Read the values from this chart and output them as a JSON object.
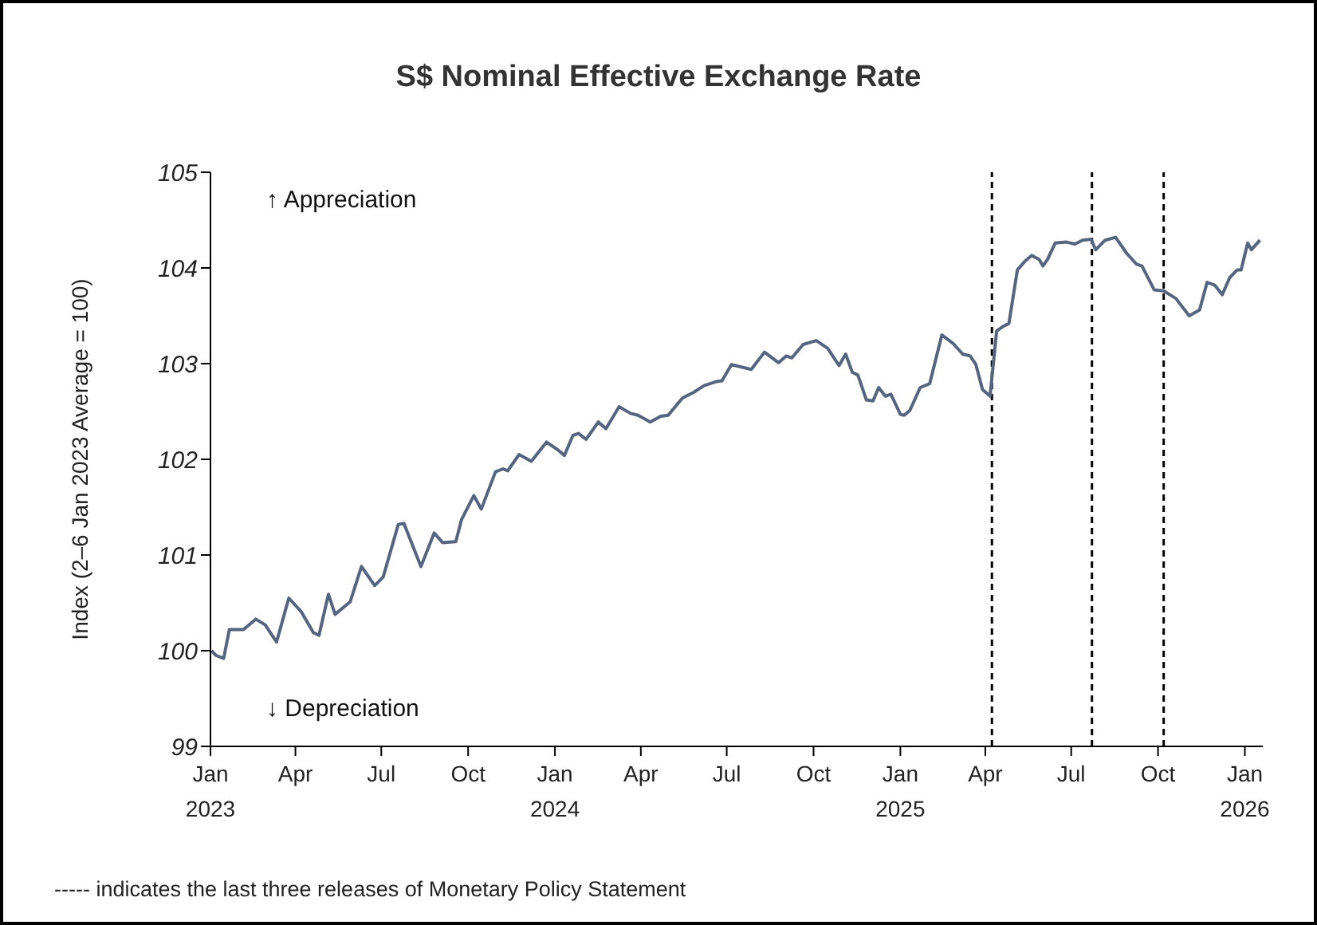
{
  "chart_data": {
    "type": "line",
    "title": "S$ Nominal Effective Exchange Rate",
    "ylabel": "Index (2–6 Jan 2023 Average = 100)",
    "annotations": [
      "↑ Appreciation",
      "↓ Depreciation",
      "----- indicates the last three releases of Monetary Policy Statement"
    ],
    "x": [
      "2023-01-02",
      "2023-01-07",
      "2023-01-15",
      "2023-01-21",
      "2023-02-05",
      "2023-02-18",
      "2023-02-28",
      "2023-03-12",
      "2023-03-25",
      "2023-04-07",
      "2023-04-20",
      "2023-04-26",
      "2023-05-06",
      "2023-05-13",
      "2023-05-29",
      "2023-06-10",
      "2023-06-24",
      "2023-07-03",
      "2023-07-19",
      "2023-07-25",
      "2023-08-12",
      "2023-08-26",
      "2023-09-04",
      "2023-09-18",
      "2023-09-24",
      "2023-10-07",
      "2023-10-15",
      "2023-10-30",
      "2023-11-07",
      "2023-11-12",
      "2023-11-24",
      "2023-12-07",
      "2023-12-23",
      "2024-01-04",
      "2024-01-11",
      "2024-01-20",
      "2024-01-26",
      "2024-02-03",
      "2024-02-16",
      "2024-02-24",
      "2024-03-09",
      "2024-03-21",
      "2024-03-29",
      "2024-04-11",
      "2024-04-22",
      "2024-04-30",
      "2024-05-15",
      "2024-05-27",
      "2024-06-07",
      "2024-06-19",
      "2024-06-26",
      "2024-07-06",
      "2024-07-27",
      "2024-08-10",
      "2024-08-25",
      "2024-09-02",
      "2024-09-08",
      "2024-09-20",
      "2024-10-04",
      "2024-10-16",
      "2024-10-28",
      "2024-11-04",
      "2024-11-11",
      "2024-11-17",
      "2024-11-26",
      "2024-12-03",
      "2024-12-09",
      "2024-12-16",
      "2024-12-22",
      "2025-01-01",
      "2025-01-05",
      "2025-01-11",
      "2025-01-22",
      "2025-02-01",
      "2025-02-14",
      "2025-02-26",
      "2025-03-08",
      "2025-03-16",
      "2025-03-22",
      "2025-03-29",
      "2025-04-06",
      "2025-04-13",
      "2025-04-20",
      "2025-04-26",
      "2025-05-05",
      "2025-05-13",
      "2025-05-20",
      "2025-05-28",
      "2025-06-01",
      "2025-06-06",
      "2025-06-14",
      "2025-06-26",
      "2025-07-05",
      "2025-07-13",
      "2025-07-22",
      "2025-07-27",
      "2025-08-06",
      "2025-08-17",
      "2025-08-29",
      "2025-09-08",
      "2025-09-14",
      "2025-09-27",
      "2025-10-07",
      "2025-10-20",
      "2025-11-03",
      "2025-11-14",
      "2025-11-22",
      "2025-11-30",
      "2025-12-08",
      "2025-12-16",
      "2025-12-24",
      "2025-12-28",
      "2026-01-04",
      "2026-01-08",
      "2026-01-17"
    ],
    "series": [
      {
        "color": "#56657f",
        "values": [
          100.0,
          99.95,
          99.92,
          100.22,
          100.22,
          100.33,
          100.27,
          100.09,
          100.55,
          100.41,
          100.19,
          100.16,
          100.59,
          100.38,
          100.51,
          100.88,
          100.68,
          100.77,
          101.32,
          101.33,
          100.88,
          101.23,
          101.13,
          101.14,
          101.37,
          101.62,
          101.48,
          101.87,
          101.9,
          101.88,
          102.05,
          101.98,
          102.18,
          102.1,
          102.04,
          102.25,
          102.27,
          102.21,
          102.39,
          102.32,
          102.55,
          102.48,
          102.46,
          102.39,
          102.45,
          102.46,
          102.64,
          102.7,
          102.77,
          102.81,
          102.82,
          102.99,
          102.94,
          103.12,
          103.01,
          103.08,
          103.06,
          103.2,
          103.24,
          103.16,
          102.98,
          103.1,
          102.91,
          102.88,
          102.62,
          102.61,
          102.75,
          102.66,
          102.68,
          102.47,
          102.46,
          102.51,
          102.75,
          102.79,
          103.3,
          103.21,
          103.1,
          103.08,
          102.99,
          102.73,
          102.66,
          103.34,
          103.39,
          103.42,
          103.98,
          104.07,
          104.13,
          104.09,
          104.02,
          104.09,
          104.26,
          104.27,
          104.25,
          104.29,
          104.3,
          104.19,
          104.29,
          104.32,
          104.15,
          104.04,
          104.02,
          103.77,
          103.76,
          103.68,
          103.5,
          103.56,
          103.85,
          103.82,
          103.72,
          103.9,
          103.98,
          103.98,
          104.26,
          104.19,
          104.29
        ]
      }
    ],
    "xlim": [
      "2023-01-01",
      "2026-01-20"
    ],
    "xticks": [
      {
        "value": "2023-01-01",
        "label": "Jan\n2023"
      },
      {
        "value": "2023-04-01",
        "label": "Apr"
      },
      {
        "value": "2023-07-01",
        "label": "Jul"
      },
      {
        "value": "2023-10-01",
        "label": "Oct"
      },
      {
        "value": "2024-01-01",
        "label": "Jan\n2024"
      },
      {
        "value": "2024-04-01",
        "label": "Apr"
      },
      {
        "value": "2024-07-01",
        "label": "Jul"
      },
      {
        "value": "2024-10-01",
        "label": "Oct"
      },
      {
        "value": "2025-01-01",
        "label": "Jan\n2025"
      },
      {
        "value": "2025-04-01",
        "label": "Apr"
      },
      {
        "value": "2025-07-01",
        "label": "Jul"
      },
      {
        "value": "2025-10-01",
        "label": "Oct"
      },
      {
        "value": "2026-01-01",
        "label": "Jan\n2026"
      }
    ],
    "ylim": [
      99,
      105
    ],
    "yticks": [
      99,
      100,
      101,
      102,
      103,
      104,
      105
    ],
    "ref_lines": [
      {
        "axis": "x",
        "value": "2025-04-08",
        "color": "#000000",
        "line_style": "dashed"
      },
      {
        "axis": "x",
        "value": "2025-07-23",
        "color": "#000000",
        "line_style": "dashed"
      },
      {
        "axis": "x",
        "value": "2025-10-07",
        "color": "#000000",
        "line_style": "dashed"
      }
    ],
    "grid": false,
    "legend": false
  }
}
